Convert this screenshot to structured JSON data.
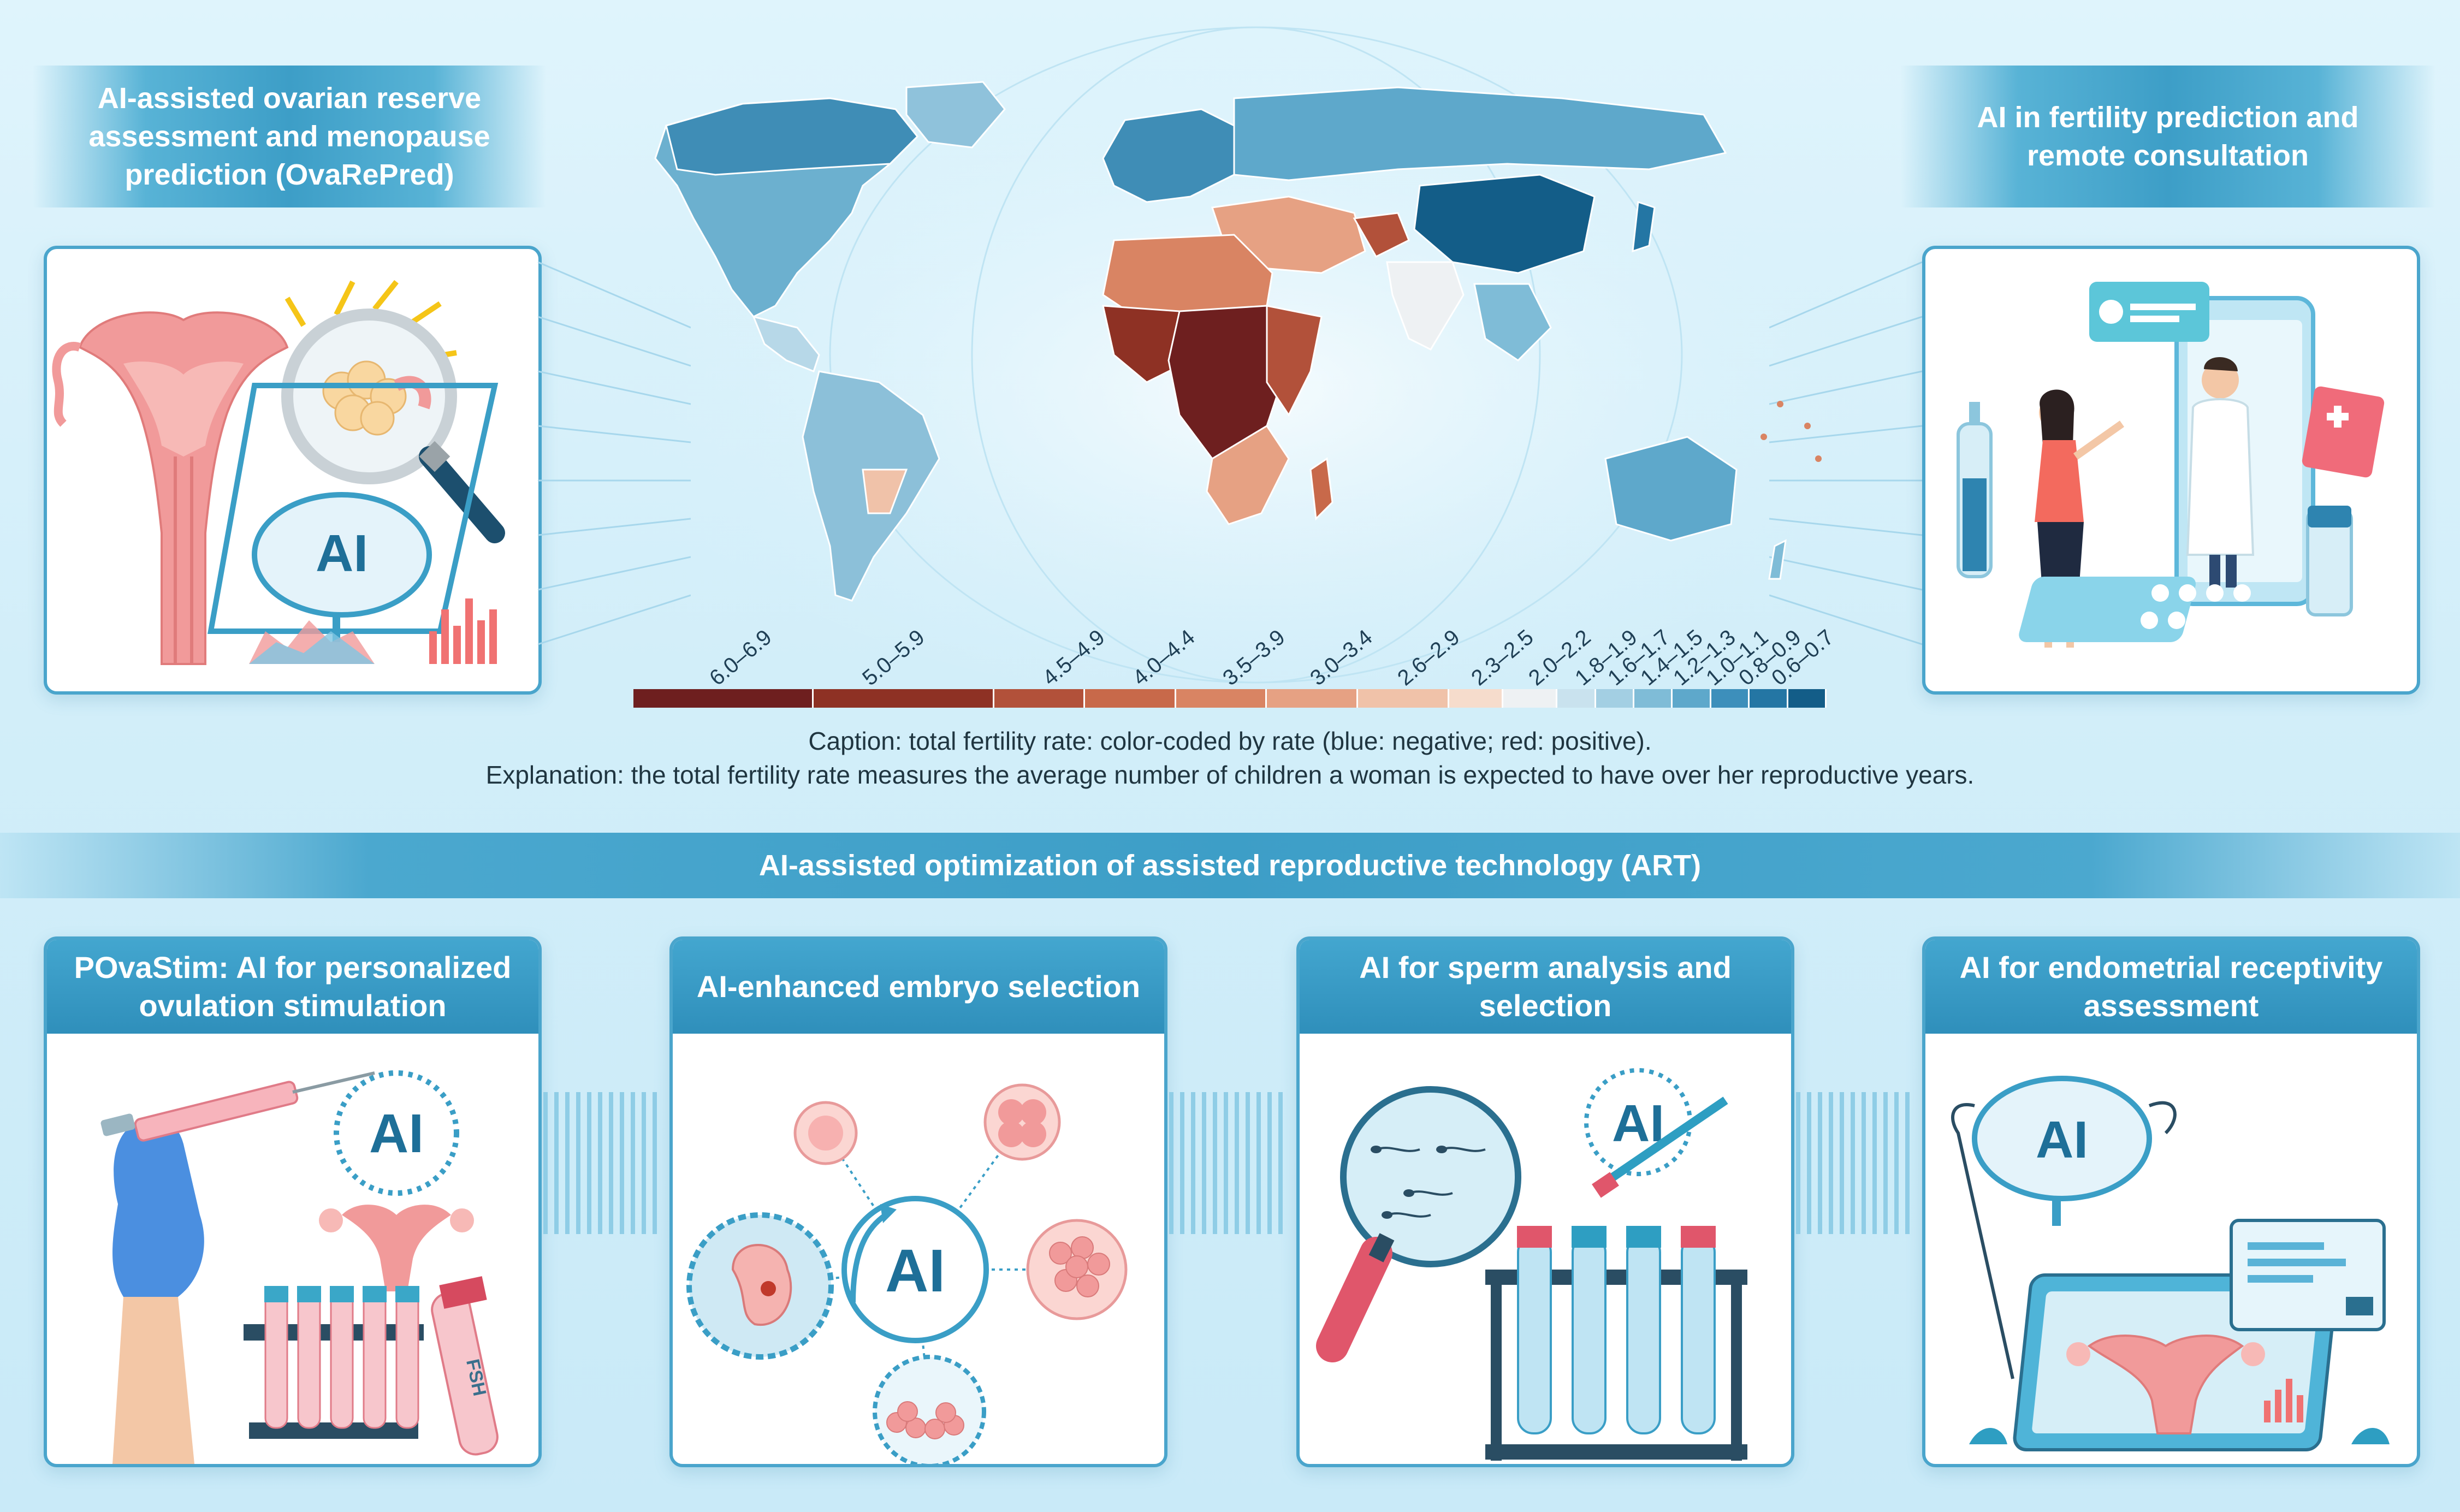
{
  "top_left_banner": {
    "title": "AI-assisted ovarian reserve assessment and menopause prediction (OvaRePred)"
  },
  "top_right_banner": {
    "title": "AI in fertility prediction and remote consultation"
  },
  "map": {
    "legend_labels": [
      "6.0–6.9",
      "5.0–5.9",
      "4.5–4.9",
      "4.0–4.4",
      "3.5–3.9",
      "3.0–3.4",
      "2.6–2.9",
      "2.3–2.5",
      "2.0–2.2",
      "1.8–1.9",
      "1.6–1.7",
      "1.4–1.5",
      "1.2–1.3",
      "1.0–1.1",
      "0.8–0.9",
      "0.6–0.7"
    ],
    "legend_colors": [
      "#6e1f1f",
      "#8e3124",
      "#b2513a",
      "#c8694a",
      "#d98463",
      "#e6a183",
      "#f0c2a9",
      "#f6dccc",
      "#eef1f3",
      "#c9e2ee",
      "#a3cfe3",
      "#7fbcd7",
      "#5ea8cb",
      "#3d8fbb",
      "#2476a4",
      "#135d88"
    ]
  },
  "caption": {
    "line1": "Caption: total fertility rate: color-coded by rate (blue: negative; red: positive).",
    "line2": "Explanation: the total fertility rate measures the average number of children a woman is expected to have over her reproductive years."
  },
  "art_banner": {
    "title": "AI-assisted optimization of assisted reproductive technology (ART)"
  },
  "panels": [
    {
      "title": "POvaStim: AI for personalized ovulation stimulation"
    },
    {
      "title": "AI-enhanced embryo selection"
    },
    {
      "title": "AI for sperm analysis and selection"
    },
    {
      "title": "AI for endometrial receptivity assessment"
    }
  ],
  "icons": {
    "ai_text": "AI",
    "fsh_text": "FSH"
  },
  "colors": {
    "accent_blue": "#3d9ec7",
    "panel_border": "#4aa5cc",
    "uterus_pink": "#f19a9a"
  }
}
